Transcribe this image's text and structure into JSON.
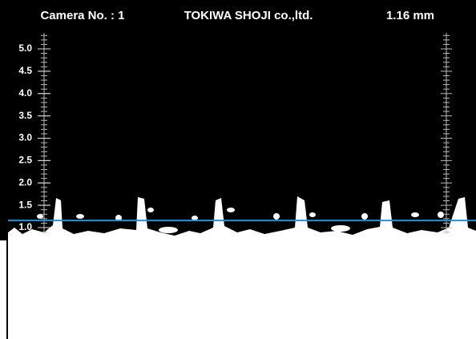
{
  "header": {
    "camera": "Camera No. : 1",
    "company": "TOKIWA SHOJI co.,ltd.",
    "measurement": {
      "value": 1.16,
      "label": "1.16 mm"
    }
  },
  "scale": {
    "ticks": [
      {
        "value": 5,
        "label": "5.0"
      },
      {
        "value": 4.5,
        "label": "4.5"
      },
      {
        "value": 4,
        "label": "4.0"
      },
      {
        "value": 3.5,
        "label": "3.5"
      },
      {
        "value": 3,
        "label": "3.0"
      },
      {
        "value": 2.5,
        "label": "2.5"
      },
      {
        "value": 2,
        "label": "2.0"
      },
      {
        "value": 1.5,
        "label": "1.5"
      },
      {
        "value": 1,
        "label": "1.0"
      }
    ]
  }
}
